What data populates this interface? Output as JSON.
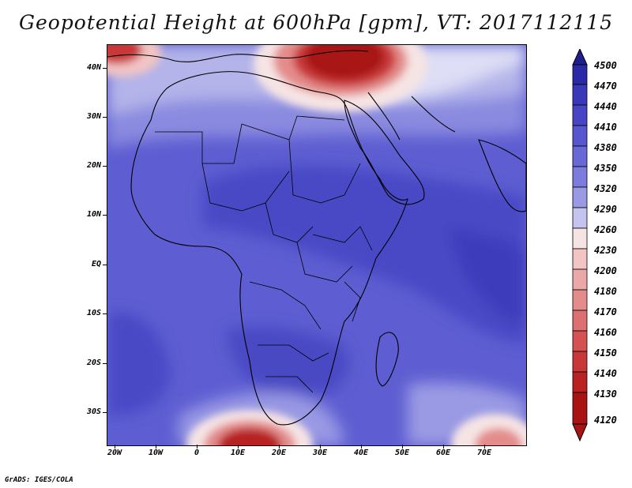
{
  "title": "Geopotential Height at 600hPa [gpm], VT: 2017112115",
  "credit": "GrADS: IGES/COLA",
  "lat_labels": [
    "40N",
    "30N",
    "20N",
    "10N",
    "EQ",
    "10S",
    "20S",
    "30S"
  ],
  "lon_labels": [
    "20W",
    "10W",
    "0",
    "10E",
    "20E",
    "30E",
    "40E",
    "50E",
    "60E",
    "70E"
  ],
  "colorbar": {
    "levels": [
      "4500",
      "4470",
      "4440",
      "4410",
      "4380",
      "4350",
      "4320",
      "4290",
      "4260",
      "4230",
      "4200",
      "4180",
      "4170",
      "4160",
      "4150",
      "4140",
      "4130",
      "4120"
    ],
    "colors": [
      "#1e1e8c",
      "#2a2aa6",
      "#3838b8",
      "#4646c4",
      "#5656ce",
      "#6868d6",
      "#7c7cdc",
      "#9a9ae4",
      "#c4c4ee",
      "#f6e4e4",
      "#f2c4c4",
      "#eca8a8",
      "#e48c8c",
      "#dc7070",
      "#d45252",
      "#c83838",
      "#b82222",
      "#a81414"
    ]
  }
}
